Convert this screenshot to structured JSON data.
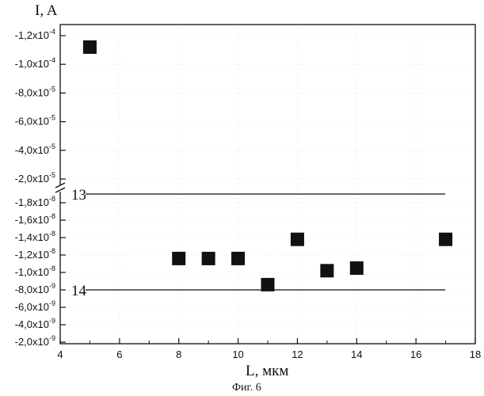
{
  "chart_data": {
    "type": "scatter",
    "caption": "Фиг. 6",
    "xlabel": "L, мкм",
    "ylabel": "I, A",
    "xlim": [
      4,
      18
    ],
    "x_ticks": [
      4,
      6,
      8,
      10,
      12,
      14,
      16,
      18
    ],
    "y_axis_broken": true,
    "y_ticks_lower": [
      {
        "value": -2e-09,
        "mantissa": "-2,0x10",
        "exp": "-9"
      },
      {
        "value": -4e-09,
        "mantissa": "-4,0x10",
        "exp": "-9"
      },
      {
        "value": -6e-09,
        "mantissa": "-6,0x10",
        "exp": "-9"
      },
      {
        "value": -8e-09,
        "mantissa": "-8,0x10",
        "exp": "-9"
      },
      {
        "value": -1e-08,
        "mantissa": "-1,0x10",
        "exp": "-8"
      },
      {
        "value": -1.2e-08,
        "mantissa": "-1,2x10",
        "exp": "-8"
      },
      {
        "value": -1.4e-08,
        "mantissa": "-1,4x10",
        "exp": "-8"
      },
      {
        "value": -1.6e-08,
        "mantissa": "-1,6x10",
        "exp": "-8"
      },
      {
        "value": -1.8e-08,
        "mantissa": "-1,8x10",
        "exp": "-8"
      }
    ],
    "y_ticks_upper": [
      {
        "value": -2e-05,
        "mantissa": "-2,0x10",
        "exp": "-5"
      },
      {
        "value": -4e-05,
        "mantissa": "-4,0x10",
        "exp": "-5"
      },
      {
        "value": -6e-05,
        "mantissa": "-6,0x10",
        "exp": "-5"
      },
      {
        "value": -8e-05,
        "mantissa": "-8,0x10",
        "exp": "-5"
      },
      {
        "value": -0.0001,
        "mantissa": "-1,0x10",
        "exp": "-4"
      },
      {
        "value": -0.00012,
        "mantissa": "-1,2x10",
        "exp": "-4"
      }
    ],
    "points": [
      {
        "x": 5,
        "y": -0.000112
      },
      {
        "x": 8,
        "y": -1.16e-08
      },
      {
        "x": 9,
        "y": -1.16e-08
      },
      {
        "x": 10,
        "y": -1.16e-08
      },
      {
        "x": 11,
        "y": -8.6e-09
      },
      {
        "x": 12,
        "y": -1.38e-08
      },
      {
        "x": 13,
        "y": -1.02e-08
      },
      {
        "x": 14,
        "y": -1.05e-08
      },
      {
        "x": 17,
        "y": -1.38e-08
      }
    ],
    "reference_lines": [
      {
        "label": "13",
        "y": -1.9e-08
      },
      {
        "label": "14",
        "y": -8e-09
      }
    ]
  }
}
